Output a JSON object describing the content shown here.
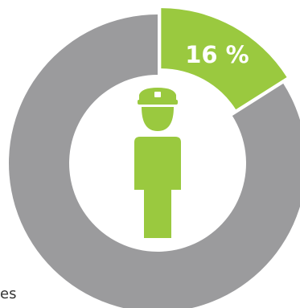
{
  "chart_data": {
    "type": "pie",
    "style": "donut",
    "slices": [
      {
        "value": 16,
        "color": "#9ac93f",
        "exploded": true
      },
      {
        "value": 84,
        "color": "#9b9b9d"
      }
    ],
    "data_label": "16 %",
    "center_icon": "police-officer-icon",
    "partial_label": "es"
  },
  "colors": {
    "accent": "#9ac93f",
    "ring": "#9b9b9d",
    "background": "#ffffff"
  }
}
